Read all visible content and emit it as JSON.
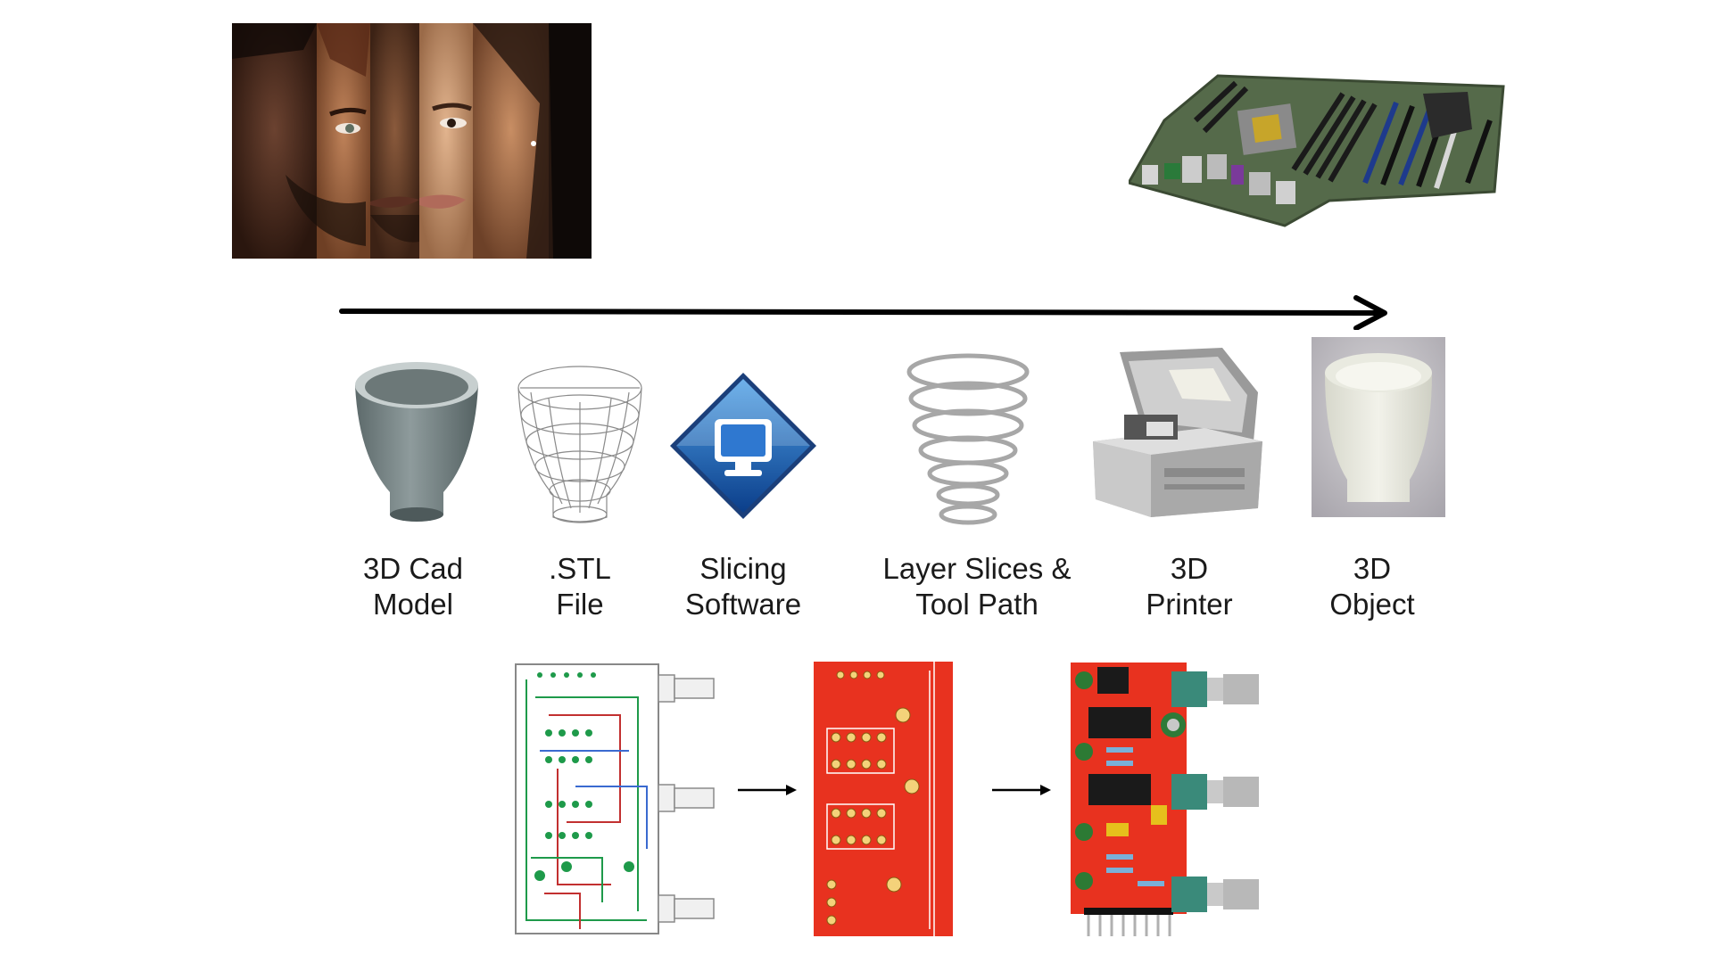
{
  "steps": [
    {
      "id": "cad",
      "line1": "3D Cad",
      "line2": "Model",
      "icon": "cad-model-cup"
    },
    {
      "id": "stl",
      "line1": ".STL",
      "line2": "File",
      "icon": "stl-wireframe-cup"
    },
    {
      "id": "slicing",
      "line1": "Slicing",
      "line2": "Software",
      "icon": "slicing-software-diamond"
    },
    {
      "id": "layers",
      "line1": "Layer Slices &",
      "line2": "Tool Path",
      "icon": "layer-rings"
    },
    {
      "id": "printer",
      "line1": "3D",
      "line2": "Printer",
      "icon": "3d-printer"
    },
    {
      "id": "object",
      "line1": "3D",
      "line2": "Object",
      "icon": "printed-cup"
    }
  ],
  "pcb_flow": [
    {
      "id": "schematic",
      "icon": "pcb-layout-drawing"
    },
    {
      "id": "red-board",
      "icon": "bare-red-pcb"
    },
    {
      "id": "assembled",
      "icon": "assembled-pcb"
    }
  ],
  "colors": {
    "arrow": "#000000",
    "pcb_red": "#e8321f",
    "pcb_green": "#1e9a4a",
    "text": "#1a1a1a"
  }
}
